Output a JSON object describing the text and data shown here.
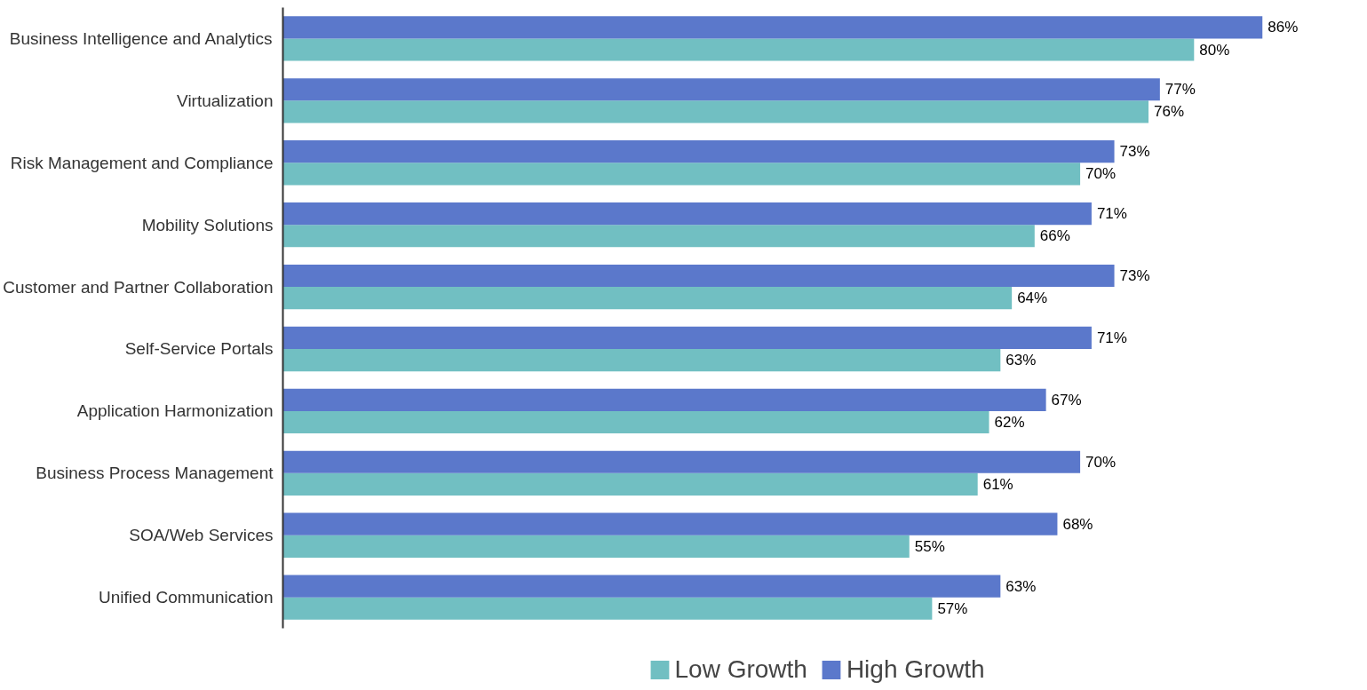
{
  "chart_data": {
    "type": "bar",
    "orientation": "horizontal",
    "categories": [
      "Business Intelligence and Analytics",
      "Virtualization",
      "Risk Management and Compliance",
      "Mobility Solutions",
      "Customer and Partner Collaboration",
      "Self-Service Portals",
      "Application Harmonization",
      "Business Process Management",
      "SOA/Web Services",
      "Unified Communication"
    ],
    "series": [
      {
        "name": "Low Growth",
        "color": "#71bfc2",
        "values": [
          80,
          76,
          70,
          66,
          64,
          63,
          62,
          61,
          55,
          57
        ],
        "value_labels": [
          "80%",
          "76%",
          "70%",
          "66%",
          "64%",
          "63%",
          "62%",
          "61%",
          "55%",
          "57%"
        ]
      },
      {
        "name": "High Growth",
        "color": "#5b78cb",
        "values": [
          86,
          77,
          73,
          71,
          73,
          71,
          67,
          70,
          68,
          63
        ],
        "value_labels": [
          "86%",
          "77%",
          "73%",
          "71%",
          "73%",
          "71%",
          "67%",
          "70%",
          "68%",
          "63%"
        ]
      }
    ],
    "legend": "bottom",
    "grid": false
  }
}
